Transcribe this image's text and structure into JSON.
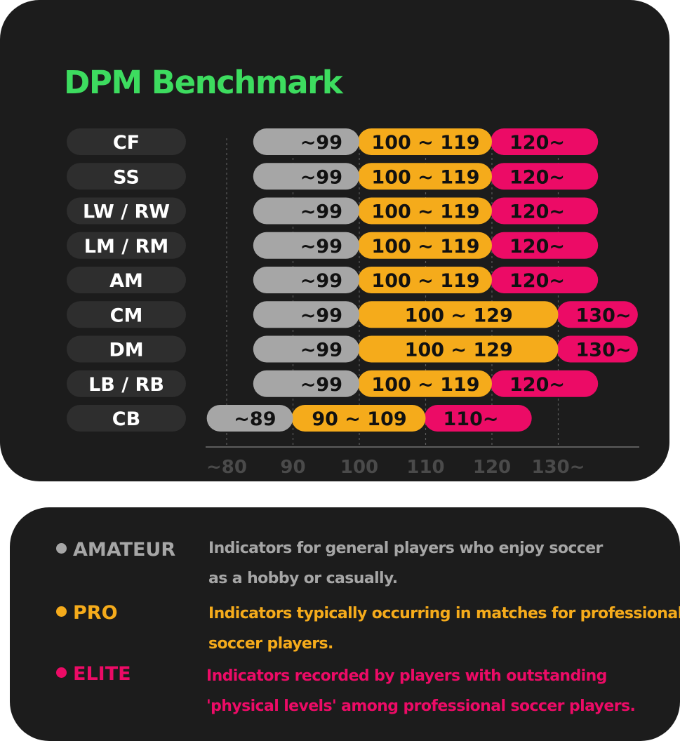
{
  "chart_data": {
    "type": "bar",
    "subtype": "stacked-horizontal-range",
    "title": "DPM Benchmark",
    "categories": [
      "CF",
      "SS",
      "LW / RW",
      "LM / RM",
      "AM",
      "CM",
      "DM",
      "LB / RB",
      "CB"
    ],
    "xlim": [
      80,
      140
    ],
    "ticks": [
      {
        "value": 80,
        "label": "~80"
      },
      {
        "value": 90,
        "label": "90"
      },
      {
        "value": 100,
        "label": "100"
      },
      {
        "value": 110,
        "label": "110"
      },
      {
        "value": 120,
        "label": "120"
      },
      {
        "value": 130,
        "label": "130~"
      }
    ],
    "grid": true,
    "series": [
      {
        "name": "AMATEUR",
        "color": "#a6a6a6",
        "ranges": [
          [
            84,
            100
          ],
          [
            84,
            100
          ],
          [
            84,
            100
          ],
          [
            84,
            100
          ],
          [
            84,
            100
          ],
          [
            84,
            100
          ],
          [
            84,
            100
          ],
          [
            84,
            100
          ],
          [
            77,
            90
          ]
        ],
        "labels": [
          "~99",
          "~99",
          "~99",
          "~99",
          "~99",
          "~99",
          "~99",
          "~99",
          "~89"
        ]
      },
      {
        "name": "PRO",
        "color": "#f5ab1b",
        "ranges": [
          [
            100,
            120
          ],
          [
            100,
            120
          ],
          [
            100,
            120
          ],
          [
            100,
            120
          ],
          [
            100,
            120
          ],
          [
            100,
            130
          ],
          [
            100,
            130
          ],
          [
            100,
            120
          ],
          [
            90,
            110
          ]
        ],
        "labels": [
          "100 ~ 119",
          "100 ~ 119",
          "100 ~ 119",
          "100 ~ 119",
          "100 ~ 119",
          "100 ~ 129",
          "100 ~ 129",
          "100 ~ 119",
          "90 ~ 109"
        ]
      },
      {
        "name": "ELITE",
        "color": "#ec0b66",
        "ranges": [
          [
            120,
            136
          ],
          [
            120,
            136
          ],
          [
            120,
            136
          ],
          [
            120,
            136
          ],
          [
            120,
            136
          ],
          [
            130,
            142
          ],
          [
            130,
            142
          ],
          [
            120,
            136
          ],
          [
            110,
            126
          ]
        ],
        "labels": [
          "120~",
          "120~",
          "120~",
          "120~",
          "120~",
          "130~",
          "130~",
          "120~",
          "110~"
        ]
      }
    ]
  },
  "legend": {
    "items": [
      {
        "name": "AMATEUR",
        "color": "#a6a6a6",
        "desc": [
          "Indicators for general players who enjoy soccer",
          "as a hobby or casually."
        ]
      },
      {
        "name": "PRO",
        "color": "#f5ab1b",
        "desc": [
          "Indicators typically occurring in matches for professional",
          "soccer players."
        ]
      },
      {
        "name": "ELITE",
        "color": "#ec0b66",
        "desc": [
          "Indicators recorded by players with outstanding",
          "'physical levels' among professional soccer players."
        ]
      }
    ]
  },
  "colors": {
    "card_background": "#1c1c1c",
    "title": "#3ddc5f",
    "position_pill": "#2e2e2e"
  }
}
